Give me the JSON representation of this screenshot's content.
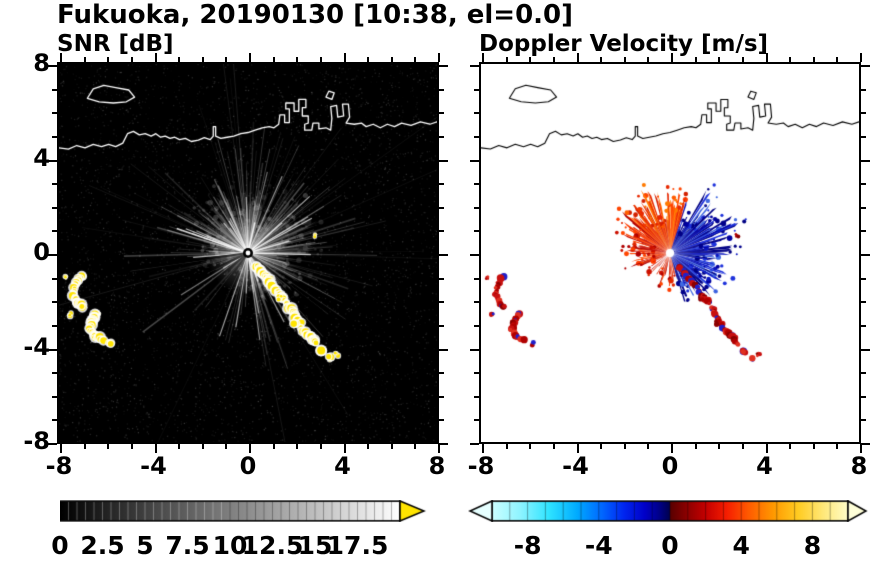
{
  "header": {
    "title": "Fukuoka, 20190130 [10:38, el=0.0]"
  },
  "panels": [
    {
      "title": "SNR [dB]"
    },
    {
      "title": "Doppler Velocity [m/s]"
    }
  ],
  "axis": {
    "xlim": [
      -8,
      8
    ],
    "ylim": [
      -8,
      8
    ],
    "xtick_values": [
      -8,
      -4,
      0,
      4,
      8
    ],
    "xtick_labels": [
      "-8",
      "-4",
      "0",
      "4",
      "8"
    ],
    "ytick_values": [
      8,
      4,
      0,
      -4,
      -8
    ],
    "ytick_labels": [
      "8",
      "4",
      "0",
      "-4",
      "-8"
    ],
    "minor_step": 1
  },
  "colorbars": [
    {
      "name": "snr",
      "min": 0,
      "max": 20,
      "values": [
        0,
        2.5,
        5,
        7.5,
        10,
        12.5,
        15,
        17.5
      ],
      "labels": [
        "0",
        "2.5",
        "5",
        "7.5",
        "10",
        "12.5",
        "15",
        "17.5"
      ],
      "gradient": [
        [
          0,
          "#000000"
        ],
        [
          1,
          "#ffffff"
        ]
      ],
      "arrow_right": "#ffe400"
    },
    {
      "name": "doppler",
      "min": -10,
      "max": 10,
      "values": [
        -8,
        -4,
        0,
        4,
        8
      ],
      "labels": [
        "-8",
        "-4",
        "0",
        "4",
        "8"
      ],
      "gradient": [
        [
          0,
          "#ccffff"
        ],
        [
          0.08,
          "#8ef4ff"
        ],
        [
          0.16,
          "#2fe4ff"
        ],
        [
          0.24,
          "#00aaff"
        ],
        [
          0.31,
          "#0066ff"
        ],
        [
          0.37,
          "#0026f0"
        ],
        [
          0.43,
          "#0000c8"
        ],
        [
          0.47,
          "#000088"
        ],
        [
          0.499,
          "#000050"
        ],
        [
          0.501,
          "#5a0000"
        ],
        [
          0.55,
          "#8f0000"
        ],
        [
          0.6,
          "#c40000"
        ],
        [
          0.66,
          "#f61e00"
        ],
        [
          0.72,
          "#ff5a00"
        ],
        [
          0.79,
          "#ff9900"
        ],
        [
          0.86,
          "#ffcc22"
        ],
        [
          0.93,
          "#ffe878"
        ],
        [
          1,
          "#fffdc8"
        ]
      ],
      "arrow_left": "#e6ffff",
      "arrow_right": "#ffffd8"
    }
  ],
  "chart_data": {
    "type": "heatmap",
    "subtype": "radar-ppi-pair",
    "title": "Fukuoka, 20190130 [10:38, el=0.0]",
    "site": "Fukuoka",
    "date": "20190130",
    "time": "10:38",
    "elevation_deg": 0.0,
    "xlim": [
      -8,
      8
    ],
    "ylim": [
      -8,
      8
    ],
    "radar_center": [
      0,
      0
    ],
    "panel_titles": [
      "SNR [dB]",
      "Doppler Velocity [m/s]"
    ],
    "snr": {
      "background": "#000000",
      "streak_color": "#ffffff",
      "dark_sector_deg": [
        195,
        250
      ],
      "dark_lines": [
        188,
        205,
        219,
        233,
        322
      ],
      "clutter_color": "#ffe400",
      "halo_color": "#ffffff"
    },
    "doppler": {
      "background": "#ffffff",
      "negative_side": "blue (toward +x, receding pattern)",
      "positive_side": "red-orange (toward +y/-x)"
    },
    "fan": {
      "seed": 77,
      "blue_start": -74,
      "blue_end": 72,
      "gap_angles": [
        21,
        33,
        97,
        116,
        151,
        248,
        260,
        264
      ],
      "sectors": [
        {
          "from": 0,
          "to": 60,
          "lmin": 1.2,
          "lmax": 3.2,
          "p": 1.0
        },
        {
          "from": 60,
          "to": 72,
          "lmin": 0.8,
          "lmax": 1.8,
          "p": 0.95
        },
        {
          "from": 72,
          "to": 160,
          "lmin": 1.1,
          "lmax": 2.7,
          "p": 1.0
        },
        {
          "from": 160,
          "to": 205,
          "lmin": 0.5,
          "lmax": 1.7,
          "p": 0.9
        },
        {
          "from": 205,
          "to": 250,
          "lmin": 0.4,
          "lmax": 1.2,
          "p": 0.35
        },
        {
          "from": 250,
          "to": 286,
          "lmin": 0.5,
          "lmax": 1.5,
          "p": 0.55
        },
        {
          "from": 286,
          "to": 360,
          "lmin": 0.9,
          "lmax": 2.4,
          "p": 0.95
        }
      ],
      "blue_palette": [
        "#000082",
        "#000082",
        "#00008b",
        "#0000a0",
        "#0a16c0",
        "#1e32dc",
        "#4169e1"
      ],
      "red_top": [
        "#ff4500",
        "#f03800",
        "#ff5f00",
        "#e82800",
        "#ff7a00",
        "#d42000"
      ],
      "red_side": [
        "#e02800",
        "#cc1000",
        "#ff4500",
        "#b00000",
        "#ff3c00"
      ]
    },
    "clutter": {
      "band_segments": [
        [
          [
            0.35,
            -0.55
          ],
          [
            1.05,
            -1.35
          ]
        ],
        [
          [
            1.15,
            -1.5
          ],
          [
            1.65,
            -2.15
          ]
        ],
        [
          [
            1.75,
            -2.3
          ],
          [
            2.2,
            -3.0
          ]
        ],
        [
          [
            2.2,
            -3.2
          ],
          [
            2.65,
            -3.55
          ],
          [
            2.9,
            -3.85
          ]
        ]
      ],
      "left_arcs": [
        [
          [
            -7.05,
            -0.95
          ],
          [
            -7.3,
            -1.35
          ],
          [
            -7.4,
            -1.75
          ],
          [
            -7.25,
            -2.1
          ],
          [
            -7.0,
            -2.3
          ]
        ],
        [
          [
            -6.35,
            -2.55
          ],
          [
            -6.62,
            -2.9
          ],
          [
            -6.7,
            -3.25
          ],
          [
            -6.45,
            -3.55
          ],
          [
            -6.15,
            -3.65
          ]
        ]
      ],
      "dots": [
        [
          3.15,
          -4.15,
          0.13
        ],
        [
          3.45,
          -4.45,
          0.1
        ],
        [
          3.75,
          -4.3,
          0.07
        ],
        [
          2.0,
          -2.95,
          0.1
        ],
        [
          2.85,
          0.75,
          0.07
        ],
        [
          -7.55,
          -2.6,
          0.08
        ],
        [
          -5.85,
          -3.85,
          0.09
        ],
        [
          -7.75,
          -1.05,
          0.06
        ],
        [
          1.35,
          -1.9,
          0.08
        ]
      ],
      "doppler_palette": [
        "#c81010",
        "#c81010",
        "#8b0000",
        "#e03020",
        "#b00000",
        "#2020cc"
      ]
    },
    "coastline": {
      "color_on_dark": "#ffffff",
      "color_on_light": "#000000",
      "segments": [
        {
          "closed": true,
          "pts": [
            [
              -6.8,
              6.55
            ],
            [
              -6.55,
              6.95
            ],
            [
              -6.1,
              7.1
            ],
            [
              -5.6,
              7.0
            ],
            [
              -5.05,
              6.9
            ],
            [
              -4.8,
              6.6
            ],
            [
              -5.15,
              6.4
            ],
            [
              -5.7,
              6.35
            ],
            [
              -6.3,
              6.4
            ]
          ]
        },
        {
          "closed": false,
          "pts": [
            [
              -8,
              4.45
            ],
            [
              -7.6,
              4.4
            ],
            [
              -7.25,
              4.55
            ],
            [
              -6.9,
              4.45
            ],
            [
              -6.55,
              4.6
            ],
            [
              -6.2,
              4.5
            ],
            [
              -5.9,
              4.6
            ],
            [
              -5.6,
              4.5
            ],
            [
              -5.3,
              4.65
            ],
            [
              -5.1,
              5.05
            ],
            [
              -4.85,
              5.15
            ],
            [
              -4.6,
              5.0
            ],
            [
              -4.35,
              5.05
            ],
            [
              -4.1,
              4.95
            ],
            [
              -3.9,
              5.05
            ],
            [
              -3.7,
              4.9
            ],
            [
              -3.5,
              4.95
            ],
            [
              -3.3,
              4.85
            ],
            [
              -3.1,
              4.9
            ],
            [
              -2.9,
              4.8
            ],
            [
              -2.65,
              4.85
            ],
            [
              -2.4,
              4.72
            ],
            [
              -2.1,
              4.78
            ],
            [
              -1.85,
              4.88
            ],
            [
              -1.6,
              4.8
            ],
            [
              -1.47,
              4.95
            ],
            [
              -1.47,
              5.35
            ],
            [
              -1.37,
              5.35
            ],
            [
              -1.37,
              4.95
            ],
            [
              -1.15,
              4.85
            ],
            [
              -0.88,
              4.9
            ],
            [
              -0.6,
              4.95
            ],
            [
              -0.3,
              5.05
            ],
            [
              0,
              5.1
            ],
            [
              0.3,
              5.2
            ],
            [
              0.6,
              5.3
            ],
            [
              0.9,
              5.35
            ],
            [
              1.1,
              5.3
            ],
            [
              1.3,
              5.45
            ],
            [
              1.35,
              5.85
            ],
            [
              1.55,
              5.85
            ],
            [
              1.55,
              5.52
            ],
            [
              1.75,
              5.52
            ],
            [
              1.75,
              6.1
            ],
            [
              1.6,
              6.1
            ],
            [
              1.6,
              6.35
            ],
            [
              1.95,
              6.35
            ],
            [
              1.95,
              6.0
            ],
            [
              2.15,
              6.0
            ],
            [
              2.15,
              6.5
            ],
            [
              2.45,
              6.5
            ],
            [
              2.45,
              6.15
            ],
            [
              2.3,
              6.15
            ],
            [
              2.3,
              5.8
            ],
            [
              2.55,
              5.8
            ],
            [
              2.55,
              5.5
            ],
            [
              2.4,
              5.45
            ],
            [
              2.4,
              5.2
            ],
            [
              2.7,
              5.2
            ],
            [
              2.75,
              5.5
            ],
            [
              3.0,
              5.5
            ],
            [
              3.0,
              5.25
            ],
            [
              3.3,
              5.3
            ],
            [
              3.5,
              5.2
            ],
            [
              3.55,
              5.7
            ],
            [
              3.5,
              6.2
            ],
            [
              3.75,
              6.25
            ],
            [
              3.8,
              5.75
            ],
            [
              4.05,
              5.8
            ],
            [
              4.0,
              6.3
            ],
            [
              4.25,
              6.3
            ],
            [
              4.3,
              5.75
            ],
            [
              4.15,
              5.5
            ],
            [
              4.5,
              5.45
            ],
            [
              4.8,
              5.5
            ],
            [
              5.0,
              5.35
            ],
            [
              5.3,
              5.45
            ],
            [
              5.6,
              5.3
            ],
            [
              5.9,
              5.45
            ],
            [
              6.2,
              5.35
            ],
            [
              6.5,
              5.5
            ],
            [
              6.9,
              5.4
            ],
            [
              7.3,
              5.55
            ],
            [
              7.7,
              5.45
            ],
            [
              8,
              5.55
            ]
          ]
        },
        {
          "closed": true,
          "pts": [
            [
              3.3,
              6.6
            ],
            [
              3.42,
              6.85
            ],
            [
              3.65,
              6.78
            ],
            [
              3.55,
              6.5
            ]
          ]
        }
      ]
    }
  }
}
